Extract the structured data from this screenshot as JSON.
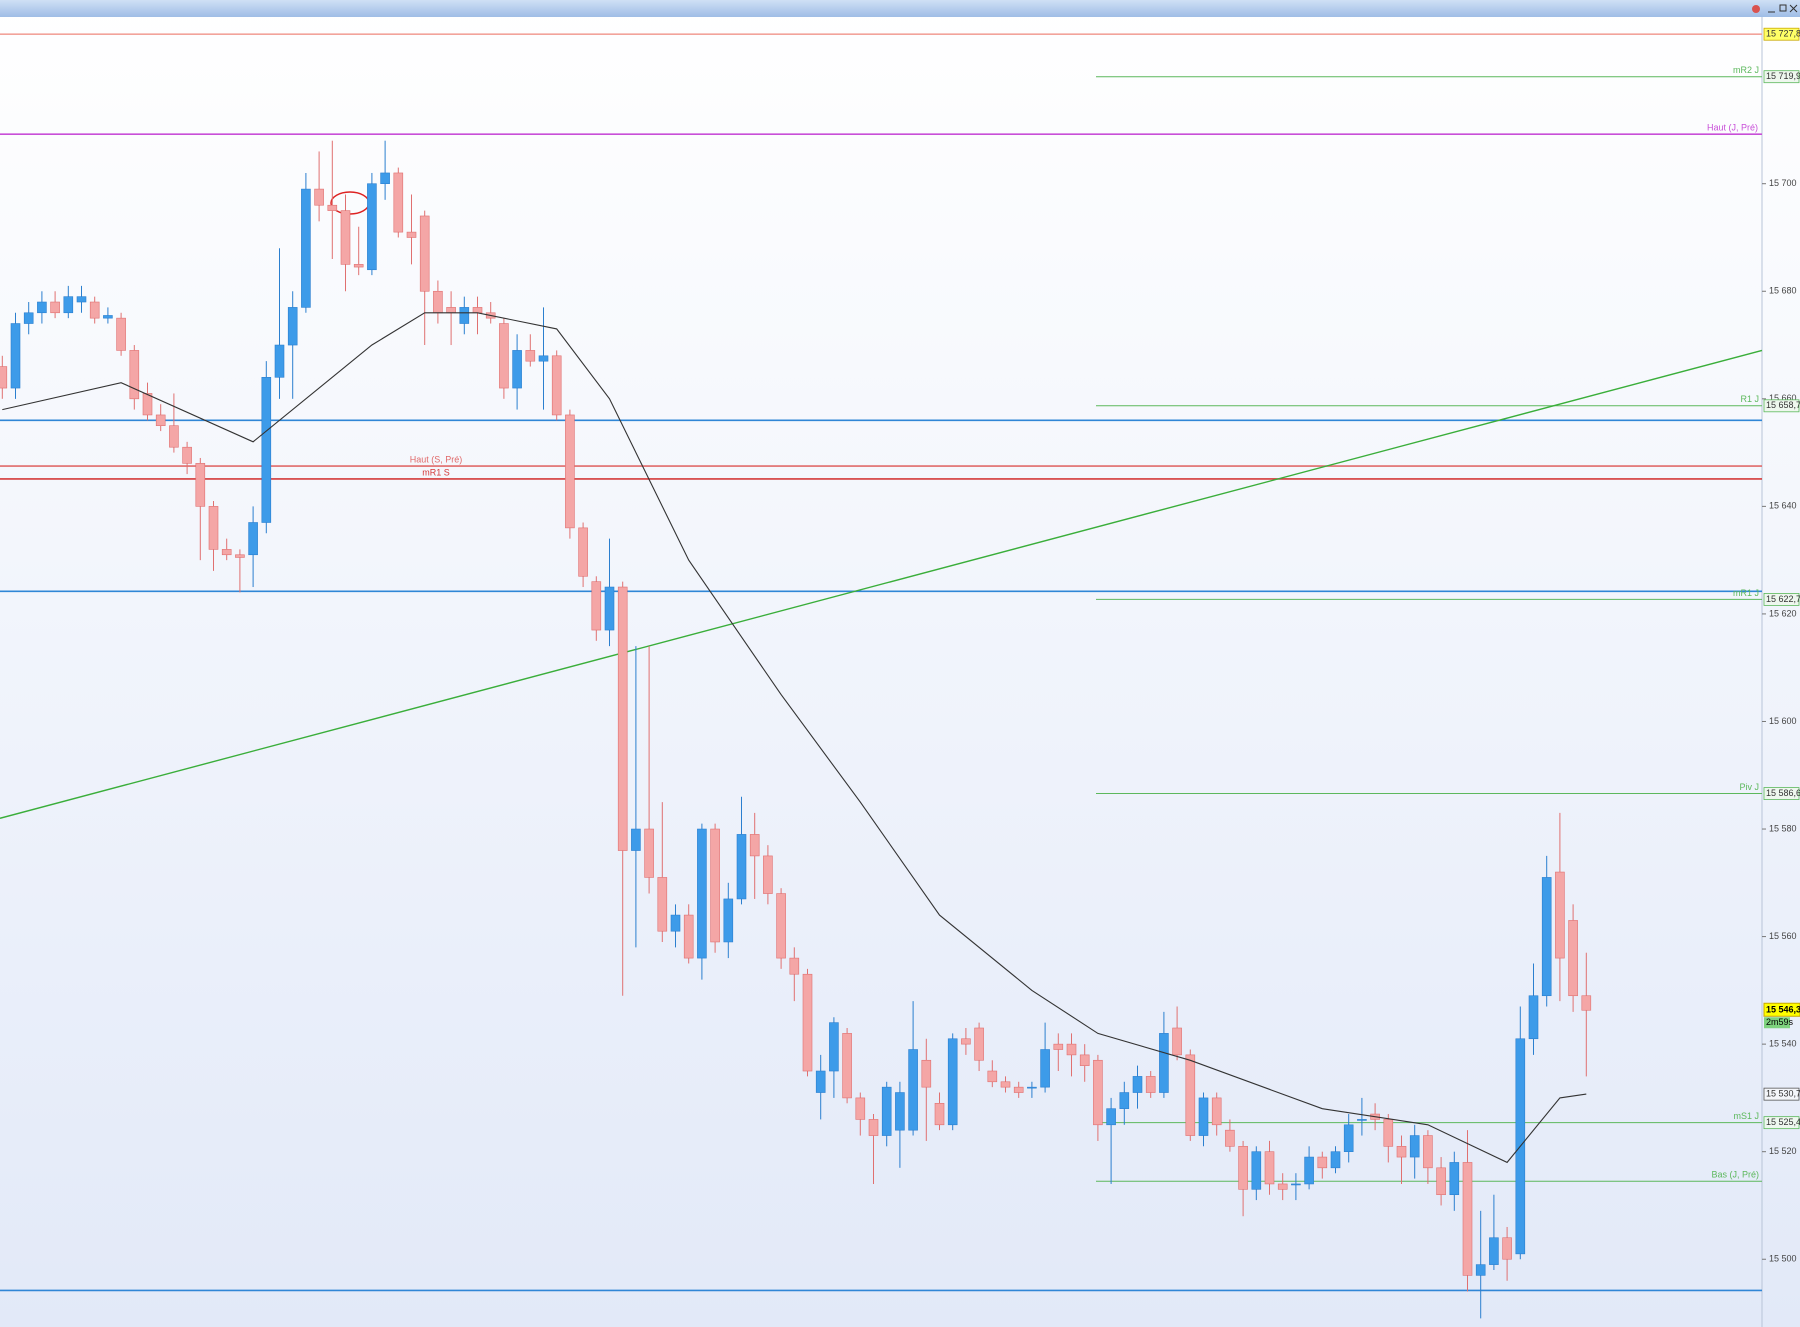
{
  "chart_data": {
    "type": "candlestick",
    "ylim": [
      15487.4,
      15731
    ],
    "yticks": [
      {
        "value": 15700,
        "label": "15 700"
      },
      {
        "value": 15680,
        "label": "15 680"
      },
      {
        "value": 15660,
        "label": "15 660"
      },
      {
        "value": 15640,
        "label": "15 640"
      },
      {
        "value": 15620,
        "label": "15 620"
      },
      {
        "value": 15600,
        "label": "15 600"
      },
      {
        "value": 15580,
        "label": "15 580"
      },
      {
        "value": 15560,
        "label": "15 560"
      },
      {
        "value": 15540,
        "label": "15 540"
      },
      {
        "value": 15520,
        "label": "15 520"
      },
      {
        "value": 15500,
        "label": "15 500"
      }
    ],
    "up_color": "#3d9be9",
    "down_color": "#f4a6a6",
    "candles": [
      [
        15666,
        15668,
        15660,
        15662
      ],
      [
        15662,
        15676,
        15660,
        15674
      ],
      [
        15674,
        15678,
        15672,
        15676
      ],
      [
        15676,
        15680,
        15674,
        15678
      ],
      [
        15678,
        15680,
        15675,
        15676
      ],
      [
        15676,
        15681,
        15675,
        15679
      ],
      [
        15678,
        15681,
        15676,
        15679
      ],
      [
        15678,
        15679,
        15674,
        15675
      ],
      [
        15675,
        15677,
        15674,
        15675.5
      ],
      [
        15675,
        15676,
        15668,
        15669
      ],
      [
        15669,
        15670,
        15658,
        15660
      ],
      [
        15661,
        15663,
        15656,
        15657
      ],
      [
        15657,
        15659,
        15654,
        15655
      ],
      [
        15655,
        15661,
        15650,
        15651
      ],
      [
        15651,
        15652,
        15646,
        15648
      ],
      [
        15648,
        15649,
        15630,
        15640
      ],
      [
        15640,
        15641,
        15628,
        15632
      ],
      [
        15632,
        15634,
        15630,
        15631
      ],
      [
        15631,
        15632,
        15624,
        15630.5
      ],
      [
        15631,
        15640,
        15625,
        15637
      ],
      [
        15637,
        15667,
        15635,
        15664
      ],
      [
        15664,
        15688,
        15660,
        15670
      ],
      [
        15670,
        15680,
        15660,
        15677
      ],
      [
        15677,
        15702,
        15676,
        15699
      ],
      [
        15699,
        15706,
        15693,
        15696
      ],
      [
        15696,
        15708,
        15686,
        15695
      ],
      [
        15695,
        15698,
        15680,
        15685
      ],
      [
        15685,
        15692,
        15683,
        15684.5
      ],
      [
        15684,
        15702,
        15683,
        15700
      ],
      [
        15700,
        15708,
        15697,
        15702
      ],
      [
        15702,
        15703,
        15690,
        15691
      ],
      [
        15691,
        15698,
        15685,
        15690
      ],
      [
        15694,
        15695,
        15670,
        15680
      ],
      [
        15680,
        15682,
        15674,
        15676
      ],
      [
        15677,
        15680,
        15670,
        15676
      ],
      [
        15674,
        15679,
        15672,
        15677
      ],
      [
        15677,
        15679,
        15672,
        15676
      ],
      [
        15676,
        15678,
        15674,
        15675
      ],
      [
        15674,
        15675,
        15660,
        15662
      ],
      [
        15662,
        15672,
        15658,
        15669
      ],
      [
        15669,
        15672,
        15666,
        15667
      ],
      [
        15667,
        15677,
        15658,
        15668
      ],
      [
        15668,
        15669,
        15656,
        15657
      ],
      [
        15657,
        15658,
        15634,
        15636
      ],
      [
        15636,
        15637,
        15625,
        15627
      ],
      [
        15626,
        15627,
        15615,
        15617
      ],
      [
        15617,
        15634,
        15614,
        15625
      ],
      [
        15625,
        15626,
        15549,
        15576
      ],
      [
        15576,
        15614,
        15558,
        15580
      ],
      [
        15580,
        15614,
        15568,
        15571
      ],
      [
        15571,
        15585,
        15559,
        15561
      ],
      [
        15561,
        15566,
        15558,
        15564
      ],
      [
        15564,
        15566,
        15555,
        15556
      ],
      [
        15556,
        15581,
        15552,
        15580
      ],
      [
        15580,
        15581,
        15557,
        15559
      ],
      [
        15559,
        15570,
        15556,
        15567
      ],
      [
        15567,
        15586,
        15566,
        15579
      ],
      [
        15579,
        15583,
        15567,
        15575
      ],
      [
        15575,
        15577,
        15566,
        15568
      ],
      [
        15568,
        15569,
        15554,
        15556
      ],
      [
        15556,
        15558,
        15548,
        15553
      ],
      [
        15553,
        15554,
        15534,
        15535
      ],
      [
        15531,
        15538,
        15526,
        15535
      ],
      [
        15535,
        15545,
        15530,
        15544
      ],
      [
        15542,
        15543,
        15529,
        15530
      ],
      [
        15530,
        15531,
        15523,
        15526
      ],
      [
        15526,
        15527,
        15514,
        15523
      ],
      [
        15523,
        15533,
        15521,
        15532
      ],
      [
        15524,
        15533,
        15517,
        15531
      ],
      [
        15524,
        15548,
        15523,
        15539
      ],
      [
        15537,
        15541,
        15522,
        15532
      ],
      [
        15529,
        15531,
        15524,
        15525
      ],
      [
        15525,
        15542,
        15524,
        15541
      ],
      [
        15541,
        15543,
        15538,
        15540
      ],
      [
        15543,
        15544,
        15535,
        15537
      ],
      [
        15535,
        15537,
        15532,
        15533
      ],
      [
        15533,
        15534,
        15531,
        15532
      ],
      [
        15532,
        15533,
        15530,
        15531
      ],
      [
        15532,
        15533,
        15530,
        15532
      ],
      [
        15532,
        15544,
        15531,
        15539
      ],
      [
        15540,
        15542,
        15535,
        15539
      ],
      [
        15540,
        15542,
        15534,
        15538
      ],
      [
        15538,
        15540,
        15533,
        15536
      ],
      [
        15537,
        15538,
        15522,
        15525
      ],
      [
        15525,
        15530,
        15514,
        15528
      ],
      [
        15528,
        15533,
        15525,
        15531
      ],
      [
        15531,
        15536,
        15528,
        15534
      ],
      [
        15534,
        15535,
        15530,
        15531
      ],
      [
        15531,
        15546,
        15530,
        15542
      ],
      [
        15543,
        15547,
        15537,
        15538
      ],
      [
        15538,
        15539,
        15522,
        15523
      ],
      [
        15523,
        15531,
        15521,
        15530
      ],
      [
        15530,
        15531,
        15523,
        15525
      ],
      [
        15524,
        15526,
        15520,
        15521
      ],
      [
        15521,
        15522,
        15508,
        15513
      ],
      [
        15513,
        15521,
        15511,
        15520
      ],
      [
        15520,
        15522,
        15512,
        15514
      ],
      [
        15514,
        15516,
        15511,
        15513
      ],
      [
        15514,
        15516,
        15511,
        15514
      ],
      [
        15514,
        15521,
        15513,
        15519
      ],
      [
        15519,
        15520,
        15515,
        15517
      ],
      [
        15517,
        15521,
        15516,
        15520
      ],
      [
        15520,
        15527,
        15518,
        15525
      ],
      [
        15526,
        15530,
        15523,
        15526
      ],
      [
        15527,
        15529,
        15524,
        15526
      ],
      [
        15526,
        15527,
        15518,
        15521
      ],
      [
        15521,
        15523,
        15514,
        15519
      ],
      [
        15519,
        15525,
        15515,
        15523
      ],
      [
        15523,
        15524,
        15514,
        15517
      ],
      [
        15517,
        15519,
        15510,
        15512
      ],
      [
        15512,
        15520,
        15509,
        15518
      ],
      [
        15518,
        15524,
        15494,
        15497
      ],
      [
        15497,
        15509,
        15489,
        15499
      ],
      [
        15499,
        15512,
        15498,
        15504
      ],
      [
        15504,
        15506,
        15496,
        15500
      ],
      [
        15501,
        15547,
        15500,
        15541
      ],
      [
        15541,
        15555,
        15538,
        15549
      ],
      [
        15549,
        15575,
        15547,
        15571
      ],
      [
        15572,
        15583,
        15548,
        15556
      ],
      [
        15563,
        15566,
        15546,
        15549
      ],
      [
        15549,
        15557,
        15534,
        15546.3
      ]
    ],
    "moving_average": {
      "color": "#333333",
      "x": [
        0,
        9,
        19,
        28,
        32,
        36,
        42,
        46,
        52,
        59,
        65,
        71,
        78,
        83,
        90,
        100,
        108,
        114,
        118,
        120
      ],
      "values": [
        15658,
        15663,
        15652,
        15670,
        15676,
        15676,
        15673,
        15660,
        15630,
        15605,
        15585,
        15564,
        15550,
        15542,
        15537,
        15528,
        15525,
        15518,
        15530,
        15530.7
      ],
      "value_label": "15 530,7"
    },
    "trendline": {
      "color": "#3aae3a",
      "values": [
        15582,
        15669
      ]
    },
    "lines": [
      {
        "price": 15727.8,
        "color": "#f2a39b",
        "price_label": "15 727,8"
      },
      {
        "price": 15709.2,
        "color": "#c84fd8",
        "name": "Haut (J, Pré)"
      },
      {
        "price": 15656.0,
        "color": "#2f86d6"
      },
      {
        "price": 15647.5,
        "color": "#e06a6a",
        "name": "Haut (S, Pré)"
      },
      {
        "price": 15645.1,
        "color": "#d43a3a",
        "name": "mR1 S"
      },
      {
        "price": 15624.2,
        "color": "#2f86d6"
      },
      {
        "price": 15494.2,
        "color": "#2f86d6"
      }
    ],
    "pivot_levels": [
      {
        "name": "mR2 J",
        "price": 15719.9,
        "price_label": "15 719,9"
      },
      {
        "name": "R1 J",
        "price": 15658.7,
        "price_label": "15 658,7"
      },
      {
        "name": "mR1 J",
        "price": 15622.7,
        "price_label": "15 622,7"
      },
      {
        "name": "Piv J",
        "price": 15586.6,
        "price_label": "15 586,6"
      },
      {
        "name": "mS1 J",
        "price": 15525.4,
        "price_label": "15 525,4"
      },
      {
        "name": "Bas (J, Pré)",
        "price": 15514.5
      }
    ],
    "pivot_color": "#5cb85c",
    "current_price": {
      "value": 15546.3,
      "label": "15 546,3",
      "timer": "2m59s"
    }
  }
}
